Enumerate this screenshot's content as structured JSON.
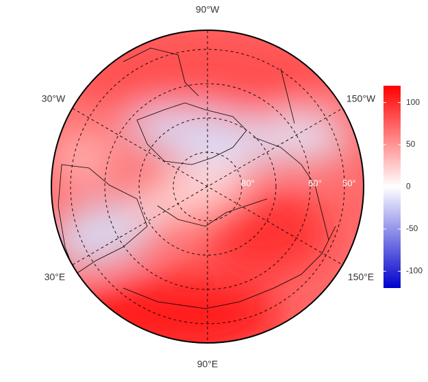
{
  "map": {
    "longitude_labels": [
      "90°W",
      "30°W",
      "150°W",
      "30°E",
      "150°E",
      "90°E"
    ],
    "latitude_labels": [
      "80°",
      "60°",
      "50°"
    ],
    "colorbar": {
      "lim": [
        -120,
        120
      ],
      "ticks": [
        100,
        50,
        0,
        -50,
        -100
      ],
      "colors": [
        "#0000cc",
        "#ffffff",
        "#ff0000"
      ]
    }
  }
}
